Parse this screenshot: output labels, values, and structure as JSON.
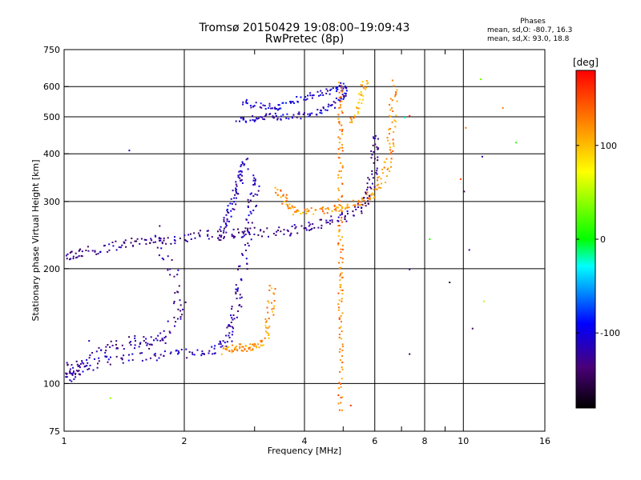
{
  "title": {
    "line1": "Tromsø 20150429 19:08:00–19:09:43",
    "line2": "RwPretec (8p)"
  },
  "phase_info": {
    "title": "Phases",
    "o_line": "mean, sd,O: -80.7, 16.3",
    "x_line": "mean, sd,X:  93.0, 18.8"
  },
  "chart_data": {
    "type": "scatter",
    "xlabel": "Frequency [MHz]",
    "ylabel": "Stationary phase Virtual Height [km]",
    "x_scale": "log",
    "y_scale": "log",
    "xlim": [
      1,
      16
    ],
    "ylim": [
      75,
      750
    ],
    "x_ticks": [
      1,
      2,
      4,
      6,
      8,
      10,
      16
    ],
    "x_tick_labels": [
      "1",
      "2",
      "4",
      "6",
      "8",
      "10",
      "16"
    ],
    "x_minor_ticks": [
      3,
      5,
      7,
      9
    ],
    "y_ticks": [
      75,
      100,
      200,
      300,
      400,
      500,
      600,
      750
    ],
    "y_tick_labels": [
      "75",
      "100",
      "200",
      "300",
      "400",
      "500",
      "600",
      "750"
    ],
    "grid": true,
    "colorbar": {
      "label": "[deg]",
      "range": [
        -180,
        180
      ],
      "ticks": [
        100,
        0,
        -100
      ],
      "tick_labels": [
        "100",
        "0",
        "-100"
      ]
    },
    "traces": [
      {
        "name_hidden": "",
        "phase": -130,
        "spread": 6,
        "points": [
          [
            1.0,
            215
          ],
          [
            1.05,
            220
          ],
          [
            1.1,
            222
          ],
          [
            1.2,
            225
          ],
          [
            1.3,
            228
          ],
          [
            1.4,
            232
          ],
          [
            1.5,
            236
          ],
          [
            1.65,
            238
          ],
          [
            1.8,
            240
          ],
          [
            2.0,
            243
          ],
          [
            2.2,
            246
          ],
          [
            2.4,
            248
          ],
          [
            2.6,
            249
          ],
          [
            2.8,
            250
          ],
          [
            3.0,
            250
          ],
          [
            3.3,
            250
          ],
          [
            3.6,
            252
          ],
          [
            3.9,
            255
          ],
          [
            4.2,
            260
          ],
          [
            4.5,
            265
          ],
          [
            4.8,
            272
          ],
          [
            5.1,
            278
          ],
          [
            5.4,
            288
          ],
          [
            5.6,
            300
          ],
          [
            5.75,
            320
          ],
          [
            5.85,
            345
          ],
          [
            5.95,
            380
          ],
          [
            6.05,
            420
          ],
          [
            6.1,
            450
          ]
        ]
      },
      {
        "phase": -125,
        "spread": 8,
        "points": [
          [
            1.0,
            110
          ],
          [
            1.05,
            108
          ],
          [
            1.1,
            112
          ],
          [
            1.2,
            120
          ],
          [
            1.3,
            125
          ],
          [
            1.4,
            128
          ],
          [
            1.5,
            130
          ],
          [
            1.6,
            128
          ],
          [
            1.7,
            130
          ],
          [
            1.8,
            135
          ],
          [
            1.9,
            150
          ],
          [
            1.95,
            165
          ],
          [
            1.85,
            200
          ],
          [
            1.75,
            230
          ],
          [
            1.7,
            260
          ]
        ]
      },
      {
        "phase": -120,
        "spread": 6,
        "points": [
          [
            1.0,
            102
          ],
          [
            1.02,
            104
          ],
          [
            1.05,
            107
          ],
          [
            1.1,
            110
          ],
          [
            1.2,
            113
          ],
          [
            1.35,
            116
          ],
          [
            1.5,
            118
          ],
          [
            1.7,
            119
          ],
          [
            1.9,
            120
          ],
          [
            2.1,
            121
          ],
          [
            2.3,
            122
          ],
          [
            2.45,
            125
          ],
          [
            2.55,
            132
          ],
          [
            2.6,
            140
          ],
          [
            2.65,
            150
          ],
          [
            2.7,
            165
          ],
          [
            2.75,
            180
          ],
          [
            2.8,
            210
          ],
          [
            2.85,
            240
          ],
          [
            2.9,
            270
          ],
          [
            2.95,
            300
          ],
          [
            3.0,
            330
          ],
          [
            3.05,
            360
          ]
        ]
      },
      {
        "phase": -115,
        "spread": 5,
        "points": [
          [
            2.45,
            240
          ],
          [
            2.5,
            255
          ],
          [
            2.55,
            270
          ],
          [
            2.6,
            290
          ],
          [
            2.65,
            310
          ],
          [
            2.7,
            330
          ],
          [
            2.75,
            350
          ],
          [
            2.8,
            370
          ],
          [
            2.85,
            385
          ]
        ]
      },
      {
        "phase": -110,
        "spread": 4,
        "points": [
          [
            2.7,
            490
          ],
          [
            2.9,
            495
          ],
          [
            3.1,
            500
          ],
          [
            3.3,
            505
          ],
          [
            3.5,
            500
          ],
          [
            3.8,
            505
          ],
          [
            4.1,
            510
          ],
          [
            4.4,
            520
          ],
          [
            4.7,
            540
          ],
          [
            4.9,
            560
          ],
          [
            5.0,
            580
          ],
          [
            5.05,
            610
          ]
        ]
      },
      {
        "phase": -105,
        "spread": 4,
        "points": [
          [
            2.8,
            550
          ],
          [
            3.0,
            540
          ],
          [
            3.2,
            535
          ],
          [
            3.4,
            530
          ],
          [
            3.6,
            540
          ],
          [
            3.9,
            560
          ],
          [
            4.2,
            575
          ],
          [
            4.5,
            585
          ],
          [
            4.8,
            600
          ],
          [
            5.0,
            615
          ]
        ]
      },
      {
        "phase": 115,
        "spread": 5,
        "points": [
          [
            2.5,
            122
          ],
          [
            2.6,
            124
          ],
          [
            2.7,
            125
          ],
          [
            2.8,
            125
          ],
          [
            2.9,
            125
          ],
          [
            3.0,
            126
          ],
          [
            3.1,
            128
          ],
          [
            3.2,
            135
          ],
          [
            3.25,
            150
          ],
          [
            3.3,
            165
          ],
          [
            3.35,
            185
          ]
        ]
      },
      {
        "phase": 120,
        "spread": 5,
        "points": [
          [
            3.4,
            330
          ],
          [
            3.5,
            310
          ],
          [
            3.6,
            295
          ],
          [
            3.8,
            285
          ],
          [
            4.0,
            283
          ],
          [
            4.3,
            285
          ],
          [
            4.6,
            287
          ],
          [
            4.9,
            290
          ],
          [
            5.2,
            295
          ],
          [
            5.5,
            300
          ],
          [
            5.8,
            310
          ],
          [
            6.0,
            320
          ],
          [
            6.2,
            340
          ],
          [
            6.4,
            370
          ],
          [
            6.5,
            400
          ],
          [
            6.55,
            440
          ],
          [
            6.6,
            490
          ],
          [
            6.65,
            550
          ],
          [
            6.7,
            620
          ]
        ]
      },
      {
        "phase": 125,
        "spread": 3,
        "points": [
          [
            4.9,
            85
          ],
          [
            4.9,
            100
          ],
          [
            4.9,
            120
          ],
          [
            4.9,
            140
          ],
          [
            4.9,
            160
          ],
          [
            4.9,
            180
          ],
          [
            4.9,
            200
          ],
          [
            4.9,
            230
          ],
          [
            4.9,
            260
          ],
          [
            4.9,
            300
          ],
          [
            4.9,
            350
          ],
          [
            4.9,
            400
          ],
          [
            4.9,
            450
          ],
          [
            4.9,
            500
          ],
          [
            4.9,
            560
          ],
          [
            4.9,
            620
          ]
        ]
      },
      {
        "phase": 110,
        "spread": 4,
        "points": [
          [
            5.2,
            480
          ],
          [
            5.35,
            520
          ],
          [
            5.5,
            560
          ],
          [
            5.6,
            600
          ],
          [
            5.65,
            630
          ]
        ]
      }
    ],
    "isolated_points": [
      [
        1.45,
        410,
        -120
      ],
      [
        1.15,
        130,
        -110
      ],
      [
        1.3,
        92,
        40
      ],
      [
        10.0,
        320,
        -150
      ],
      [
        10.1,
        470,
        130
      ],
      [
        10.3,
        225,
        -130
      ],
      [
        10.5,
        140,
        -140
      ],
      [
        11.0,
        630,
        30
      ],
      [
        11.1,
        395,
        -120
      ],
      [
        11.2,
        165,
        50
      ],
      [
        12.5,
        530,
        130
      ],
      [
        13.5,
        430,
        10
      ],
      [
        7.3,
        200,
        -130
      ],
      [
        7.3,
        120,
        -150
      ],
      [
        8.2,
        240,
        10
      ],
      [
        9.2,
        185,
        -160
      ],
      [
        7.1,
        500,
        -20
      ],
      [
        5.2,
        88,
        160
      ],
      [
        7.3,
        505,
        170
      ],
      [
        9.8,
        345,
        150
      ]
    ]
  }
}
